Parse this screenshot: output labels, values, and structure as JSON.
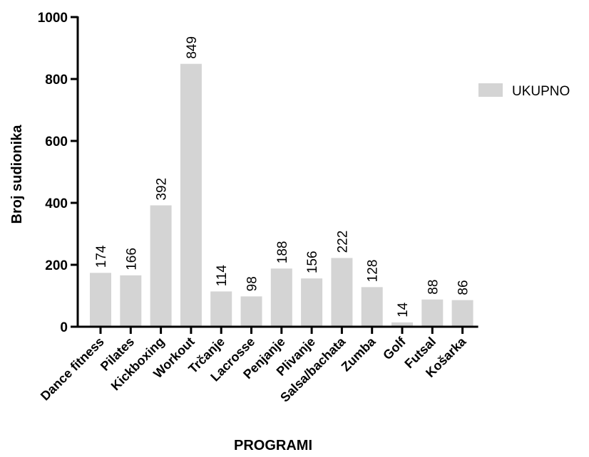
{
  "chart_data": {
    "type": "bar",
    "categories": [
      "Dance fitness",
      "Pilates",
      "Kickboxing",
      "Workout",
      "Trčanje",
      "Lacrosse",
      "Penjanje",
      "Plivanje",
      "Salsa/bachata",
      "Zumba",
      "Golf",
      "Futsal",
      "Košarka"
    ],
    "series": [
      {
        "name": "UKUPNO",
        "values": [
          174,
          166,
          392,
          849,
          114,
          98,
          188,
          156,
          222,
          128,
          14,
          88,
          86
        ],
        "color": "#d4d4d4"
      }
    ],
    "data_labels": [
      "174",
      "166",
      "392",
      "849",
      "114",
      "98",
      "188",
      "156",
      "222",
      "128",
      "14",
      "88",
      "86"
    ],
    "xlabel": "PROGRAMI",
    "ylabel": "Broj sudionika",
    "ylim": [
      0,
      1000
    ],
    "yticks": [
      "0",
      "200",
      "400",
      "600",
      "800",
      "1000"
    ],
    "legend_position": "right",
    "grid": false
  }
}
